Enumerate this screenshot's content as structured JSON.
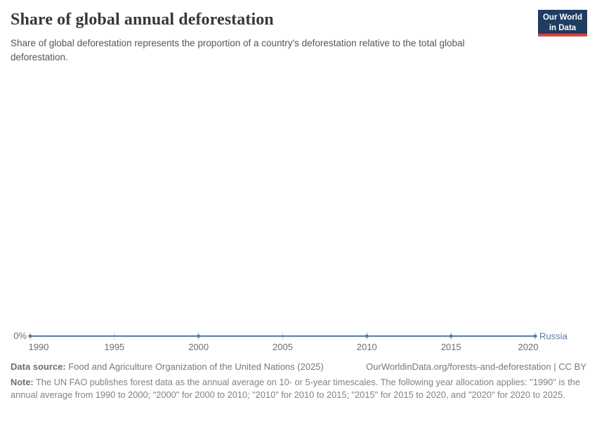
{
  "header": {
    "title": "Share of global annual deforestation",
    "subtitle": "Share of global deforestation represents the proportion of a country's deforestation relative to the total global deforestation.",
    "logo": {
      "line1": "Our World",
      "line2": "in Data"
    }
  },
  "chart_data": {
    "type": "line",
    "title": "Share of global annual deforestation",
    "series": [
      {
        "name": "Russia",
        "color": "#577ab0",
        "x": [
          1990,
          2000,
          2010,
          2015,
          2020
        ],
        "values": [
          0,
          0,
          0,
          0,
          0
        ],
        "unit": "%"
      }
    ],
    "x_ticks": [
      1990,
      1995,
      2000,
      2005,
      2010,
      2015,
      2020
    ],
    "xlim": [
      1990,
      2020
    ],
    "y_ticks": [
      "0%"
    ],
    "ylim": [
      0,
      1
    ],
    "grid": false,
    "legend_position": "end-of-line"
  },
  "footer": {
    "data_source_label": "Data source:",
    "data_source": " Food and Agriculture Organization of the United Nations (2025)",
    "link": "OurWorldinData.org/forests-and-deforestation | CC BY",
    "note_label": "Note:",
    "note": " The UN FAO publishes forest data as the annual average on 10- or 5-year timescales. The following year allocation applies: \"1990\" is the annual average from 1990 to 2000; \"2000\" for 2000 to 2010; \"2010\" for 2010 to 2015; \"2015\" for 2015 to 2020, and \"2020\" for 2020 to 2025."
  },
  "colors": {
    "accent": "#577ab0",
    "logo_bg": "#1d3d63",
    "logo_stripe": "#e0403e",
    "tick": "#cacaca"
  }
}
